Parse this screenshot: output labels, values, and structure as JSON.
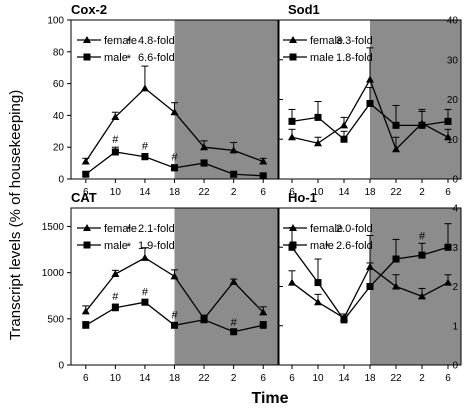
{
  "figure": {
    "ylabel": "Transcript levels (% of housekeeping)",
    "xlabel": "Time"
  },
  "chart_data": [
    {
      "type": "line",
      "title": "Cox-2",
      "categories": [
        "6",
        "10",
        "14",
        "18",
        "22",
        "2",
        "6"
      ],
      "ylim": [
        0,
        100
      ],
      "yticks": [
        0,
        20,
        40,
        60,
        80,
        100
      ],
      "shaded_from_index": 3,
      "series": [
        {
          "name": "female",
          "marker": "triangle",
          "values": [
            11,
            39,
            57,
            42,
            20,
            18,
            11
          ],
          "errors": [
            2,
            3,
            14,
            6,
            4,
            5,
            2
          ],
          "annotation": "4.8-fold",
          "star": true
        },
        {
          "name": "male",
          "marker": "square",
          "values": [
            3,
            17,
            14,
            7,
            10,
            3,
            2
          ],
          "errors": [
            1,
            3,
            2,
            2,
            2,
            1,
            1
          ],
          "annotation": "6.6-fold",
          "star": true
        }
      ],
      "hash_indices": [
        1,
        2,
        3
      ],
      "hash_label": "#",
      "star_label": "*"
    },
    {
      "type": "line",
      "title": "Sod1",
      "categories": [
        "6",
        "10",
        "14",
        "18",
        "22",
        "2",
        "6"
      ],
      "ylim": [
        0,
        40
      ],
      "yticks": [
        0,
        10,
        20,
        30,
        40
      ],
      "shaded_from_index": 3,
      "series": [
        {
          "name": "female",
          "marker": "triangle",
          "values": [
            10.5,
            9,
            13.5,
            25,
            7.5,
            14,
            10.5
          ],
          "errors": [
            2,
            1.5,
            2,
            8,
            3,
            3,
            2
          ],
          "annotation": "3.3-fold",
          "star": false
        },
        {
          "name": "male",
          "marker": "square",
          "values": [
            14.5,
            15.5,
            10,
            19,
            13.5,
            13.5,
            14.5
          ],
          "errors": [
            3,
            4,
            2,
            4,
            5,
            4,
            3
          ],
          "annotation": "1.8-fold",
          "star": false
        }
      ],
      "hash_indices": [],
      "hash_label": "#",
      "star_label": "*"
    },
    {
      "type": "line",
      "title": "CAT",
      "categories": [
        "6",
        "10",
        "14",
        "18",
        "22",
        "2",
        "6"
      ],
      "ylim": [
        0,
        1700
      ],
      "yticks": [
        0,
        500,
        1000,
        1500
      ],
      "shaded_from_index": 3,
      "series": [
        {
          "name": "female",
          "marker": "triangle",
          "values": [
            580,
            985,
            1160,
            960,
            500,
            900,
            570
          ],
          "errors": [
            60,
            40,
            110,
            70,
            40,
            30,
            60
          ],
          "annotation": "2.1-fold",
          "star": true
        },
        {
          "name": "male",
          "marker": "square",
          "values": [
            430,
            620,
            680,
            430,
            490,
            360,
            430
          ],
          "errors": [
            40,
            40,
            30,
            30,
            40,
            20,
            40
          ],
          "annotation": "1.9-fold",
          "star": true
        }
      ],
      "hash_indices": [
        1,
        2,
        3,
        5
      ],
      "hash_label": "#",
      "star_label": "*"
    },
    {
      "type": "line",
      "title": "Ho-1",
      "categories": [
        "6",
        "10",
        "14",
        "18",
        "22",
        "2",
        "6"
      ],
      "ylim": [
        0,
        4
      ],
      "yticks": [
        0,
        1,
        2,
        3,
        4
      ],
      "shaded_from_index": 3,
      "series": [
        {
          "name": "female",
          "marker": "triangle",
          "values": [
            2.1,
            1.6,
            1.2,
            2.5,
            2.0,
            1.75,
            2.1
          ],
          "errors": [
            0.3,
            0.2,
            0.1,
            0.8,
            0.3,
            0.2,
            0.2
          ],
          "annotation": "2.0-fold",
          "star": false
        },
        {
          "name": "male",
          "marker": "square",
          "values": [
            3.0,
            2.1,
            1.15,
            2.0,
            2.7,
            2.8,
            3.0
          ],
          "errors": [
            0.5,
            0.6,
            0.1,
            0.6,
            0.5,
            0.3,
            0.6
          ],
          "annotation": "2.6-fold",
          "star": true
        }
      ],
      "hash_indices": [
        5
      ],
      "hash_label": "#",
      "star_label": "*"
    }
  ],
  "colors": {
    "shade": "#8c8c8c",
    "line": "#000000"
  }
}
